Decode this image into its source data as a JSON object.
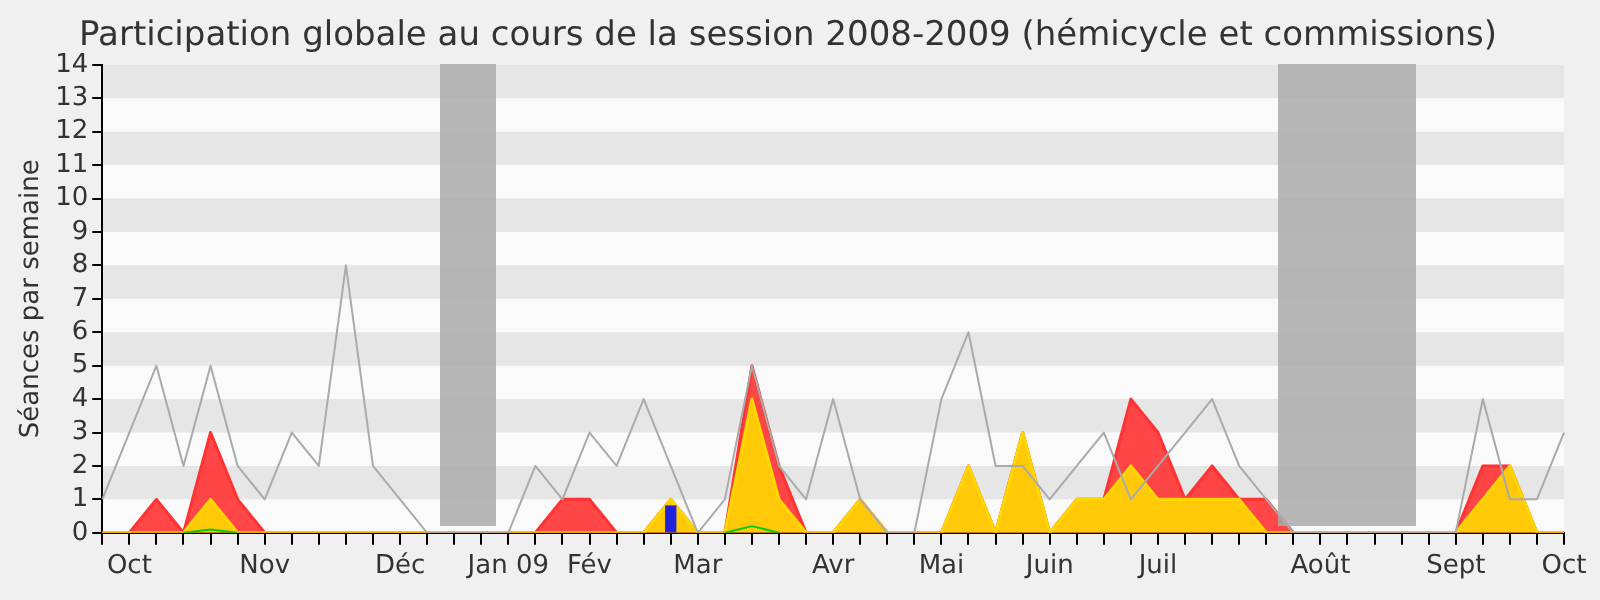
{
  "chart_data": {
    "type": "area",
    "title": "Participation globale au cours de la session 2008-2009 (hémicycle et commissions)",
    "ylabel": "Séances par semaine",
    "categories": [
      null,
      "Oct",
      null,
      null,
      null,
      null,
      "Nov",
      null,
      null,
      null,
      null,
      "Déc",
      null,
      null,
      null,
      "Jan 09",
      null,
      null,
      "Fév",
      null,
      null,
      null,
      "Mar",
      null,
      null,
      null,
      null,
      "Avr",
      null,
      null,
      null,
      "Mai",
      null,
      null,
      null,
      "Juin",
      null,
      null,
      null,
      "Juil",
      null,
      null,
      null,
      null,
      null,
      "Août",
      null,
      null,
      null,
      null,
      "Sept",
      null,
      null,
      null,
      "Oct"
    ],
    "ylim": [
      0,
      14
    ],
    "yticks": [
      0,
      1,
      2,
      3,
      4,
      5,
      6,
      7,
      8,
      9,
      10,
      11,
      12,
      13,
      14
    ],
    "legend": false,
    "marker": "none",
    "series": [
      {
        "type": "line",
        "color": "#aaaaaa",
        "values": [
          1,
          3,
          5,
          2,
          5,
          2,
          1,
          3,
          2,
          8,
          2,
          1,
          0,
          0,
          0,
          0,
          2,
          1,
          3,
          2,
          4,
          2,
          0,
          1,
          5,
          2,
          1,
          4,
          1,
          0,
          0,
          4,
          6,
          2,
          2,
          1,
          2,
          3,
          1,
          2,
          3,
          4,
          2,
          1,
          0,
          0,
          0,
          0,
          0,
          0,
          0,
          4,
          1,
          1,
          3
        ]
      },
      {
        "color": "#ff3333",
        "values": [
          0,
          0,
          1,
          0,
          3,
          1,
          0,
          0,
          0,
          0,
          0,
          0,
          0,
          0,
          0,
          0,
          0,
          1,
          1,
          0,
          0,
          1,
          0,
          0,
          5,
          2,
          0,
          0,
          1,
          0,
          0,
          0,
          2,
          0,
          3,
          0,
          1,
          1,
          4,
          3,
          1,
          2,
          1,
          1,
          0,
          0,
          0,
          0,
          0,
          0,
          0,
          2,
          2,
          0,
          0
        ]
      },
      {
        "color": "#ffd700",
        "values": [
          0,
          0,
          0,
          0,
          1,
          0,
          0,
          0,
          0,
          0,
          0,
          0,
          0,
          0,
          0,
          0,
          0,
          0,
          0,
          0,
          0,
          1,
          0,
          0,
          4,
          1,
          0,
          0,
          1,
          0,
          0,
          0,
          2,
          0,
          3,
          0,
          1,
          1,
          2,
          1,
          1,
          1,
          1,
          0,
          0,
          0,
          0,
          0,
          0,
          0,
          0,
          1,
          2,
          0,
          0
        ]
      },
      {
        "type": "line",
        "color": "#00cc00",
        "values": [
          null,
          null,
          null,
          0,
          0.1,
          0,
          null,
          null,
          null,
          null,
          null,
          null,
          null,
          null,
          null,
          null,
          null,
          null,
          null,
          null,
          null,
          null,
          null,
          0,
          0.2,
          0,
          null,
          null,
          null,
          null,
          null,
          null,
          null,
          null,
          null,
          null,
          null,
          null,
          null,
          null,
          null,
          null,
          null,
          null,
          null,
          null,
          null,
          null,
          null,
          null,
          null,
          null,
          null,
          null,
          null
        ]
      },
      {
        "type": "bar",
        "color": "#2222dd",
        "values": [
          null,
          null,
          null,
          null,
          null,
          null,
          null,
          null,
          null,
          null,
          null,
          null,
          null,
          null,
          null,
          null,
          null,
          null,
          null,
          null,
          null,
          0.8,
          null,
          null,
          null,
          null,
          null,
          null,
          null,
          null,
          null,
          null,
          null,
          null,
          null,
          null,
          null,
          null,
          null,
          null,
          null,
          null,
          null,
          null,
          null,
          null,
          null,
          null,
          null,
          null,
          null,
          null,
          null,
          null,
          null
        ]
      }
    ]
  }
}
